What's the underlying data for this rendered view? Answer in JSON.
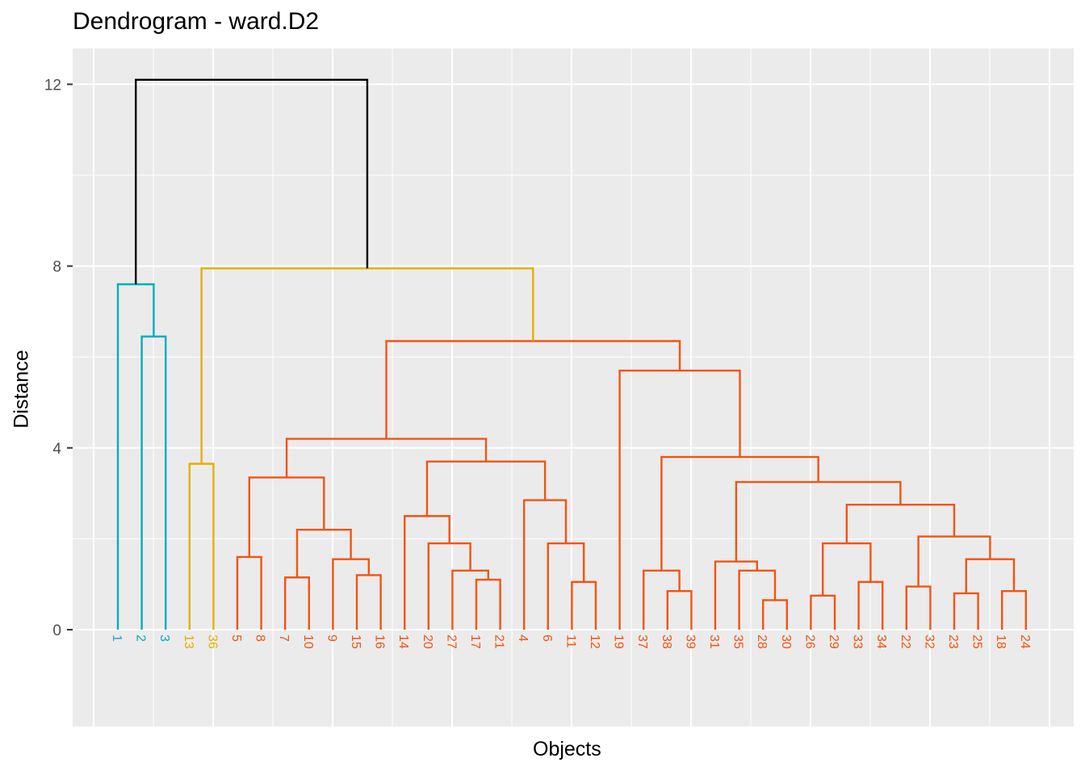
{
  "chart_data": {
    "type": "dendrogram",
    "title": "Dendrogram - ward.D2",
    "xlabel": "Objects",
    "ylabel": "Distance",
    "ylim": [
      -2,
      12.8
    ],
    "yticks": [
      0,
      4,
      8,
      12
    ],
    "grid": true,
    "colors": {
      "cluster_1": "#2e9fd8",
      "cluster_2": "#00aebf",
      "cluster_3": "#e3b000",
      "cluster_4": "#f25412",
      "root": "#000000",
      "panel_background": "#ebebeb",
      "grid": "#ffffff"
    },
    "leaves": [
      {
        "label": "1",
        "cluster": "cluster_1"
      },
      {
        "label": "2",
        "cluster": "cluster_2"
      },
      {
        "label": "3",
        "cluster": "cluster_2"
      },
      {
        "label": "13",
        "cluster": "cluster_3"
      },
      {
        "label": "36",
        "cluster": "cluster_3"
      },
      {
        "label": "5",
        "cluster": "cluster_4"
      },
      {
        "label": "8",
        "cluster": "cluster_4"
      },
      {
        "label": "7",
        "cluster": "cluster_4"
      },
      {
        "label": "10",
        "cluster": "cluster_4"
      },
      {
        "label": "9",
        "cluster": "cluster_4"
      },
      {
        "label": "15",
        "cluster": "cluster_4"
      },
      {
        "label": "16",
        "cluster": "cluster_4"
      },
      {
        "label": "14",
        "cluster": "cluster_4"
      },
      {
        "label": "20",
        "cluster": "cluster_4"
      },
      {
        "label": "27",
        "cluster": "cluster_4"
      },
      {
        "label": "17",
        "cluster": "cluster_4"
      },
      {
        "label": "21",
        "cluster": "cluster_4"
      },
      {
        "label": "4",
        "cluster": "cluster_4"
      },
      {
        "label": "6",
        "cluster": "cluster_4"
      },
      {
        "label": "11",
        "cluster": "cluster_4"
      },
      {
        "label": "12",
        "cluster": "cluster_4"
      },
      {
        "label": "19",
        "cluster": "cluster_4"
      },
      {
        "label": "37",
        "cluster": "cluster_4"
      },
      {
        "label": "38",
        "cluster": "cluster_4"
      },
      {
        "label": "39",
        "cluster": "cluster_4"
      },
      {
        "label": "31",
        "cluster": "cluster_4"
      },
      {
        "label": "35",
        "cluster": "cluster_4"
      },
      {
        "label": "28",
        "cluster": "cluster_4"
      },
      {
        "label": "30",
        "cluster": "cluster_4"
      },
      {
        "label": "26",
        "cluster": "cluster_4"
      },
      {
        "label": "29",
        "cluster": "cluster_4"
      },
      {
        "label": "33",
        "cluster": "cluster_4"
      },
      {
        "label": "34",
        "cluster": "cluster_4"
      },
      {
        "label": "22",
        "cluster": "cluster_4"
      },
      {
        "label": "32",
        "cluster": "cluster_4"
      },
      {
        "label": "23",
        "cluster": "cluster_4"
      },
      {
        "label": "25",
        "cluster": "cluster_4"
      },
      {
        "label": "18",
        "cluster": "cluster_4"
      },
      {
        "label": "24",
        "cluster": "cluster_4"
      }
    ],
    "merges": [
      {
        "left": "L:2",
        "right": "L:3",
        "height": 6.45,
        "cluster": "cluster_2"
      },
      {
        "left": "L:1",
        "right": "M:0",
        "height": 7.6,
        "cluster": "cluster_2"
      },
      {
        "left": "L:13",
        "right": "L:36",
        "height": 3.65,
        "cluster": "cluster_3"
      },
      {
        "left": "L:5",
        "right": "L:8",
        "height": 1.6,
        "cluster": "cluster_4"
      },
      {
        "left": "L:7",
        "right": "L:10",
        "height": 1.15,
        "cluster": "cluster_4"
      },
      {
        "left": "L:15",
        "right": "L:16",
        "height": 1.2,
        "cluster": "cluster_4"
      },
      {
        "left": "L:9",
        "right": "M:5",
        "height": 1.55,
        "cluster": "cluster_4"
      },
      {
        "left": "M:4",
        "right": "M:6",
        "height": 2.2,
        "cluster": "cluster_4"
      },
      {
        "left": "M:3",
        "right": "M:7",
        "height": 3.35,
        "cluster": "cluster_4"
      },
      {
        "left": "L:17",
        "right": "L:21",
        "height": 1.1,
        "cluster": "cluster_4"
      },
      {
        "left": "L:27",
        "right": "M:9",
        "height": 1.3,
        "cluster": "cluster_4"
      },
      {
        "left": "L:20",
        "right": "M:10",
        "height": 1.9,
        "cluster": "cluster_4"
      },
      {
        "left": "L:14",
        "right": "M:11",
        "height": 2.5,
        "cluster": "cluster_4"
      },
      {
        "left": "L:11",
        "right": "L:12",
        "height": 1.05,
        "cluster": "cluster_4"
      },
      {
        "left": "L:6",
        "right": "M:13",
        "height": 1.9,
        "cluster": "cluster_4"
      },
      {
        "left": "L:4",
        "right": "M:14",
        "height": 2.85,
        "cluster": "cluster_4"
      },
      {
        "left": "M:12",
        "right": "M:15",
        "height": 3.7,
        "cluster": "cluster_4"
      },
      {
        "left": "M:8",
        "right": "M:16",
        "height": 4.2,
        "cluster": "cluster_4"
      },
      {
        "left": "L:38",
        "right": "L:39",
        "height": 0.85,
        "cluster": "cluster_4"
      },
      {
        "left": "L:37",
        "right": "M:18",
        "height": 1.3,
        "cluster": "cluster_4"
      },
      {
        "left": "L:28",
        "right": "L:30",
        "height": 0.65,
        "cluster": "cluster_4"
      },
      {
        "left": "L:35",
        "right": "M:20",
        "height": 1.3,
        "cluster": "cluster_4"
      },
      {
        "left": "L:31",
        "right": "M:21",
        "height": 1.5,
        "cluster": "cluster_4"
      },
      {
        "left": "L:26",
        "right": "L:29",
        "height": 0.75,
        "cluster": "cluster_4"
      },
      {
        "left": "L:33",
        "right": "L:34",
        "height": 1.05,
        "cluster": "cluster_4"
      },
      {
        "left": "M:23",
        "right": "M:24",
        "height": 1.9,
        "cluster": "cluster_4"
      },
      {
        "left": "L:22",
        "right": "L:32",
        "height": 0.95,
        "cluster": "cluster_4"
      },
      {
        "left": "L:23",
        "right": "L:25",
        "height": 0.8,
        "cluster": "cluster_4"
      },
      {
        "left": "L:18",
        "right": "L:24",
        "height": 0.85,
        "cluster": "cluster_4"
      },
      {
        "left": "M:27",
        "right": "M:28",
        "height": 1.55,
        "cluster": "cluster_4"
      },
      {
        "left": "M:26",
        "right": "M:29",
        "height": 2.05,
        "cluster": "cluster_4"
      },
      {
        "left": "M:25",
        "right": "M:30",
        "height": 2.75,
        "cluster": "cluster_4"
      },
      {
        "left": "M:22",
        "right": "M:31",
        "height": 3.25,
        "cluster": "cluster_4"
      },
      {
        "left": "M:19",
        "right": "M:32",
        "height": 3.8,
        "cluster": "cluster_4"
      },
      {
        "left": "L:19",
        "right": "M:33",
        "height": 5.7,
        "cluster": "cluster_4"
      },
      {
        "left": "M:17",
        "right": "M:34",
        "height": 6.35,
        "cluster": "cluster_4"
      },
      {
        "left": "M:2",
        "right": "M:35",
        "height": 7.95,
        "cluster": "cluster_3"
      },
      {
        "left": "M:1",
        "right": "M:36",
        "height": 12.1,
        "cluster": "root"
      }
    ]
  }
}
